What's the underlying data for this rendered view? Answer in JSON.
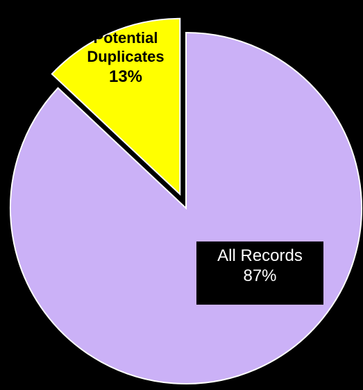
{
  "chart_data": {
    "type": "pie",
    "title": "",
    "categories": [
      "All Records",
      "Potential Duplicates"
    ],
    "values": [
      87,
      13
    ],
    "unit": "%",
    "colors": [
      "#cbb1f7",
      "#ffff00"
    ],
    "exploded": [
      false,
      true
    ],
    "labels": {
      "records": {
        "name": "All Records",
        "pct": "87%"
      },
      "duplicates": {
        "line1": "Potential",
        "line2": "Duplicates",
        "pct": "13%"
      }
    },
    "legend": "none",
    "background": "#000000"
  }
}
